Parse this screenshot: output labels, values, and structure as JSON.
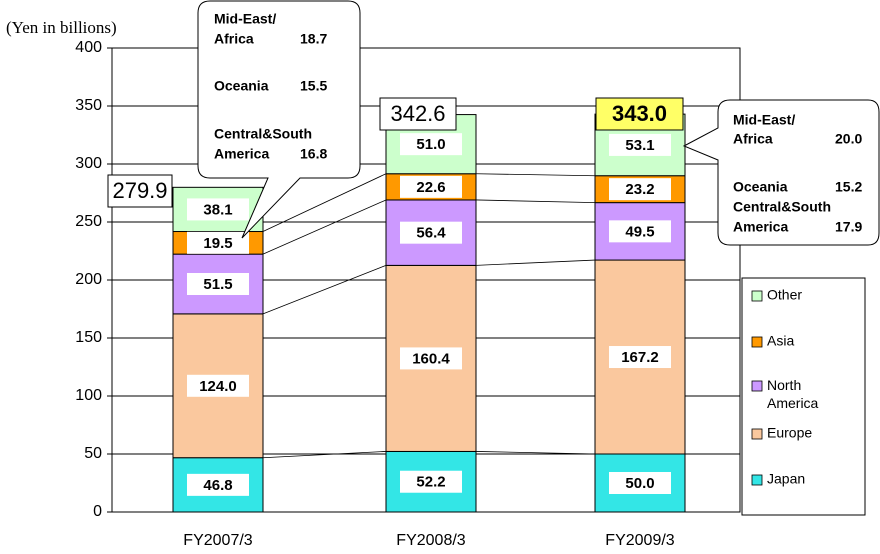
{
  "chart_data": {
    "type": "stacked_bar",
    "y_axis_label": "(Yen in billions)",
    "categories": [
      "FY2007/3",
      "FY2008/3",
      "FY2009/3"
    ],
    "series": [
      {
        "name": "Japan",
        "color": "#33e6e6",
        "values": [
          46.8,
          52.2,
          50.0
        ],
        "value_labels": [
          "46.8",
          "52.2",
          "50.0"
        ]
      },
      {
        "name": "Europe",
        "color": "#fac89e",
        "values": [
          124.0,
          160.4,
          167.2
        ],
        "value_labels": [
          "124.0",
          "160.4",
          "167.2"
        ]
      },
      {
        "name": "North America",
        "color": "#cc99ff",
        "values": [
          51.5,
          56.4,
          49.5
        ],
        "value_labels": [
          "51.5",
          "56.4",
          "49.5"
        ]
      },
      {
        "name": "Asia",
        "color": "#ff9900",
        "values": [
          19.5,
          22.6,
          23.2
        ],
        "value_labels": [
          "19.5",
          "22.6",
          "23.2"
        ]
      },
      {
        "name": "Other",
        "color": "#ccffcc",
        "values": [
          38.1,
          51.0,
          53.1
        ],
        "value_labels": [
          "38.1",
          "51.0",
          "53.1"
        ]
      }
    ],
    "totals": [
      279.9,
      342.6,
      343.0
    ],
    "total_labels": [
      "279.9",
      "342.6",
      "343.0"
    ],
    "total_colors": [
      "#ffffff",
      "#ffffff",
      "#ffff66"
    ],
    "ylim": [
      0,
      400
    ],
    "yticks": [
      0,
      50,
      100,
      150,
      200,
      250,
      300,
      350,
      400
    ],
    "grid": true,
    "legend_position": "right",
    "callouts": [
      {
        "items": [
          {
            "name": [
              "Mid-East/",
              "Africa"
            ],
            "value": 18.7
          },
          {
            "name": [
              "Oceania"
            ],
            "value": 15.5
          },
          {
            "name": [
              "Central&South",
              "America"
            ],
            "value": 16.8
          }
        ]
      },
      {
        "items": [
          {
            "name": [
              "Mid-East/",
              "Africa"
            ],
            "value": 20.0,
            "value_label": "20.0"
          },
          {
            "name": [
              "Oceania"
            ],
            "value": 15.2
          },
          {
            "name": [
              "Central&South",
              "America"
            ],
            "value": 17.9
          }
        ]
      }
    ]
  }
}
